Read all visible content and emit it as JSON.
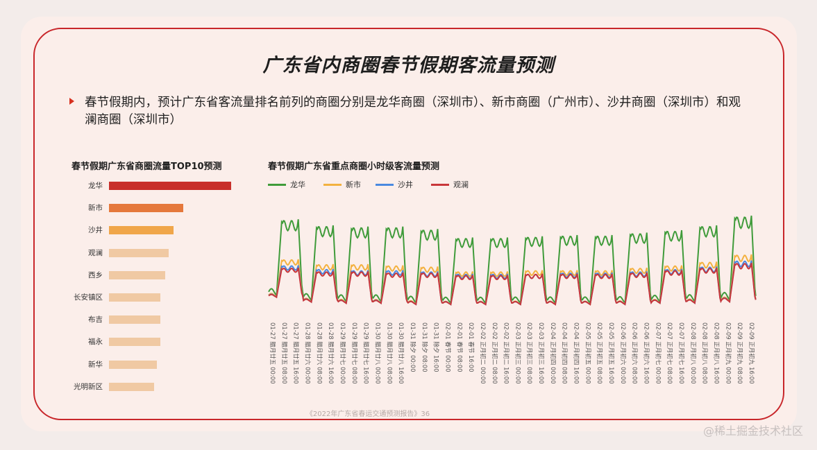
{
  "title": "广东省内商圈春节假期客流量预测",
  "bullet": "春节假期内，预计广东省客流量排名前列的商圈分别是龙华商圈（深圳市）、新市商圈（广州市）、沙井商圈（深圳市）和观澜商圈（深圳市）",
  "footer": "《2022年广东省春运交通预测报告》36",
  "watermark": "@稀土掘金技术社区",
  "colors": {
    "frame": "#c8262a",
    "bg": "#fbeeea"
  },
  "chart_data": [
    {
      "type": "bar",
      "orientation": "horizontal",
      "title": "春节假期广东省商圈流量TOP10预测",
      "categories": [
        "龙华",
        "新市",
        "沙井",
        "观澜",
        "西乡",
        "长安镇区",
        "布吉",
        "福永",
        "新华",
        "光明新区"
      ],
      "values": [
        100,
        61,
        53,
        49,
        46,
        42,
        42,
        42,
        39,
        37
      ],
      "colors": [
        "#c8302b",
        "#e5783c",
        "#f0a64a",
        "#f0c9a3",
        "#f0c9a3",
        "#f0c9a3",
        "#f0c9a3",
        "#f0c9a3",
        "#f0c9a3",
        "#f0c9a3"
      ]
    },
    {
      "type": "line",
      "title": "春节假期广东省重点商圈小时级客流量预测",
      "x": [
        "01-27 腊月廿五 00:00",
        "01-27 腊月廿五 08:00",
        "01-27 腊月廿五 16:00",
        "01-28 腊月廿六 00:00",
        "01-28 腊月廿六 08:00",
        "01-28 腊月廿六 16:00",
        "01-29 腊月廿七 00:00",
        "01-29 腊月廿七 08:00",
        "01-29 腊月廿七 16:00",
        "01-30 腊月廿八 00:00",
        "01-30 腊月廿八 08:00",
        "01-30 腊月廿八 16:00",
        "01-31 除夕 00:00",
        "01-31 除夕 08:00",
        "01-31 除夕 16:00",
        "02-01 春节 00:00",
        "02-01 春节 08:00",
        "02-01 春节 16:00",
        "02-02 正月初二 00:00",
        "02-02 正月初二 08:00",
        "02-02 正月初二 16:00",
        "02-03 正月初三 00:00",
        "02-03 正月初三 08:00",
        "02-03 正月初三 16:00",
        "02-04 正月初四 00:00",
        "02-04 正月初四 08:00",
        "02-04 正月初四 16:00",
        "02-05 正月初五 00:00",
        "02-05 正月初五 08:00",
        "02-05 正月初五 16:00",
        "02-06 正月初六 00:00",
        "02-06 正月初六 08:00",
        "02-06 正月初六 16:00",
        "02-07 正月初七 00:00",
        "02-07 正月初七 08:00",
        "02-07 正月初七 16:00",
        "02-08 正月初八 00:00",
        "02-08 正月初八 08:00",
        "02-08 正月初八 16:00",
        "02-09 正月初九 00:00",
        "02-09 正月初九 08:00",
        "02-09 正月初九 16:00"
      ],
      "series": [
        {
          "name": "龙华",
          "color": "#3f9b3a",
          "daily_peak": [
            85,
            80,
            79,
            79,
            77,
            70,
            70,
            71,
            72,
            72,
            74,
            76,
            80,
            88
          ]
        },
        {
          "name": "新市",
          "color": "#f3b13f",
          "daily_peak": [
            52,
            48,
            48,
            47,
            46,
            42,
            42,
            43,
            43,
            43,
            45,
            47,
            50,
            56
          ]
        },
        {
          "name": "沙井",
          "color": "#4a89e0",
          "daily_peak": [
            47,
            44,
            43,
            43,
            42,
            40,
            40,
            40,
            41,
            41,
            42,
            44,
            46,
            51
          ]
        },
        {
          "name": "观澜",
          "color": "#c8363a",
          "daily_peak": [
            45,
            42,
            42,
            41,
            41,
            39,
            39,
            40,
            40,
            40,
            41,
            43,
            45,
            49
          ]
        }
      ],
      "daily_trough": [
        20,
        16,
        15,
        15,
        14,
        14,
        14,
        14,
        14,
        14,
        14,
        15,
        15,
        16
      ]
    }
  ]
}
